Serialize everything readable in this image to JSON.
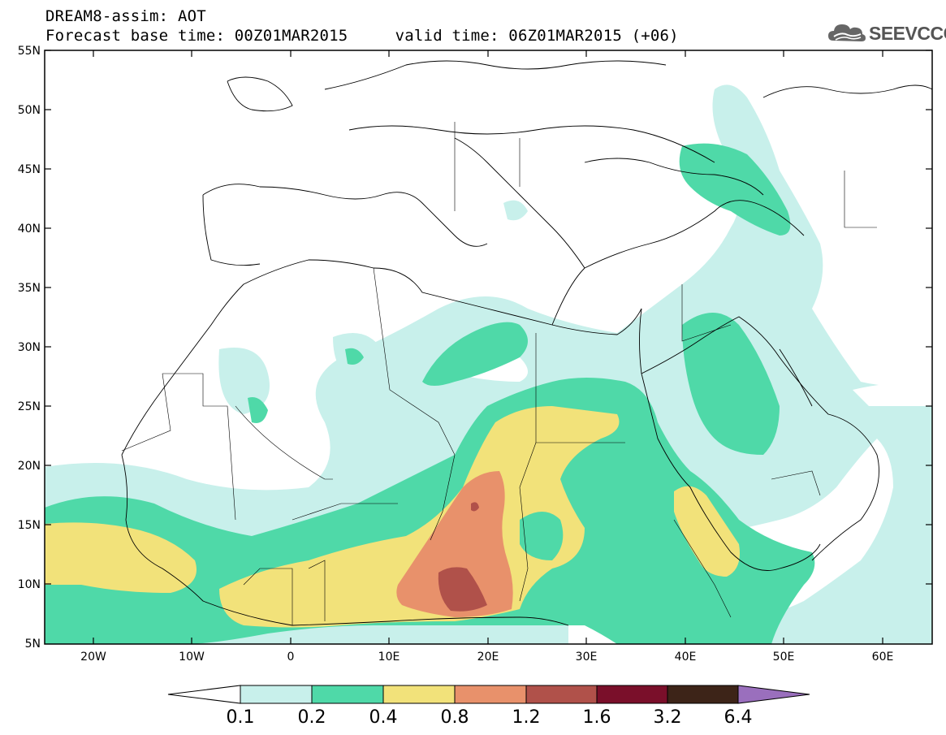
{
  "header": {
    "line1": "DREAM8-assim: AOT",
    "line2": "Forecast base time: 00Z01MAR2015     valid time: 06Z01MAR2015 (+06)"
  },
  "logo": {
    "text": "SEEVCCC",
    "icon": "cloud-icon"
  },
  "map": {
    "lon_range": [
      -25,
      65
    ],
    "lat_range": [
      5,
      55
    ],
    "lat_labels": [
      "55N",
      "50N",
      "45N",
      "40N",
      "35N",
      "30N",
      "25N",
      "20N",
      "15N",
      "10N",
      "5N"
    ],
    "lon_labels": [
      "20W",
      "10W",
      "0",
      "10E",
      "20E",
      "30E",
      "40E",
      "50E",
      "60E"
    ]
  },
  "colorbar": {
    "labels": [
      "0.1",
      "0.2",
      "0.4",
      "0.8",
      "1.2",
      "1.6",
      "3.2",
      "6.4"
    ],
    "colors": [
      "#c8f0eb",
      "#4fd9a8",
      "#f2e27a",
      "#e8916b",
      "#b0514a",
      "#7a0f2a",
      "#3d2418",
      "#9a6fbd"
    ],
    "under_color": "#ffffff"
  }
}
